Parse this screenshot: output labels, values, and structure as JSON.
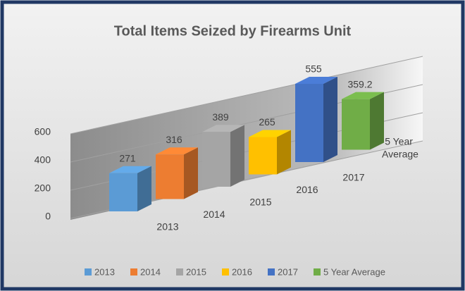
{
  "chart_data": {
    "type": "bar3d",
    "title": "Total Items Seized by Firearms Unit",
    "categories": [
      "2013",
      "2014",
      "2015",
      "2016",
      "2017",
      "5 Year Average"
    ],
    "values": [
      271,
      316,
      389,
      265,
      555,
      359.2
    ],
    "colors": [
      "#5b9bd5",
      "#ed7d31",
      "#a5a5a5",
      "#ffc000",
      "#4472c4",
      "#70ad47"
    ],
    "ylim": [
      0,
      600
    ],
    "yticks": [
      0,
      200,
      400,
      600
    ],
    "grid": true,
    "legend": "bottom"
  }
}
